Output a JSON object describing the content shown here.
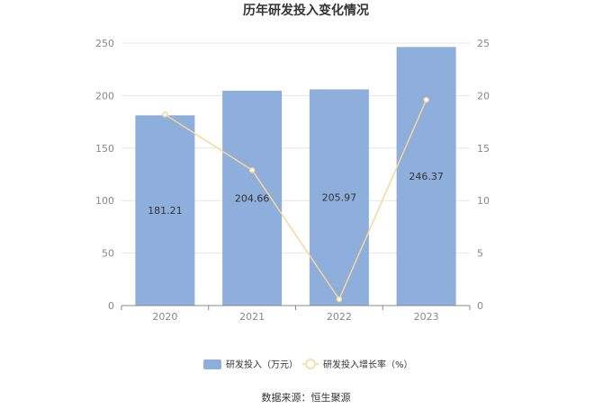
{
  "chart_data": {
    "type": "bar",
    "title": "历年研发投入变化情况",
    "categories": [
      "2020",
      "2021",
      "2022",
      "2023"
    ],
    "series": [
      {
        "name": "研发投入（万元）",
        "type": "bar",
        "axis": "left",
        "color": "#8eaedb",
        "values": [
          181.21,
          204.66,
          205.97,
          246.37
        ],
        "labels": [
          "181.21",
          "204.66",
          "205.97",
          "246.37"
        ]
      },
      {
        "name": "研发投入增长率（%）",
        "type": "line",
        "axis": "right",
        "color": "#f7d79b",
        "values": [
          18.2,
          12.9,
          0.6,
          19.6
        ]
      }
    ],
    "y_left": {
      "min": 0,
      "max": 250,
      "ticks": [
        "0",
        "50",
        "100",
        "150",
        "200",
        "250"
      ]
    },
    "y_right": {
      "min": 0,
      "max": 25,
      "ticks": [
        "0",
        "5",
        "10",
        "15",
        "20",
        "25"
      ]
    },
    "grid": true,
    "legend_position": "bottom"
  },
  "source_text": "数据来源：恒生聚源"
}
